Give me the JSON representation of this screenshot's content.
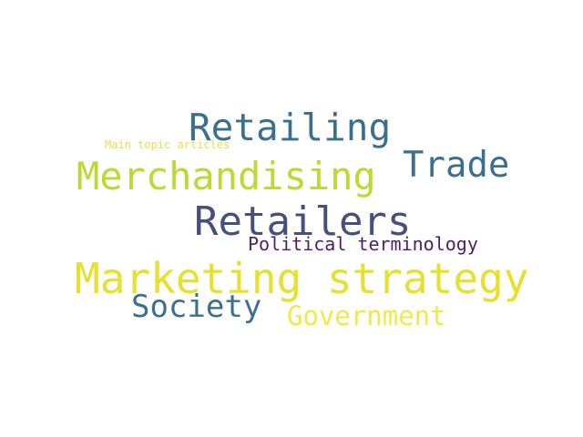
{
  "words": [
    {
      "text": "Retailing",
      "color": "#3b6f8f"
    },
    {
      "text": "Main topic articles",
      "color": "#e8df4a"
    },
    {
      "text": "Trade",
      "color": "#3b6f8f"
    },
    {
      "text": "Merchandising",
      "color": "#bcd936"
    },
    {
      "text": "Retailers",
      "color": "#46507f"
    },
    {
      "text": "Political terminology",
      "color": "#4e1e66"
    },
    {
      "text": "Marketing strategy",
      "color": "#e6e030"
    },
    {
      "text": "Society",
      "color": "#3b6f8f"
    },
    {
      "text": "Government",
      "color": "#f2e84a"
    }
  ]
}
